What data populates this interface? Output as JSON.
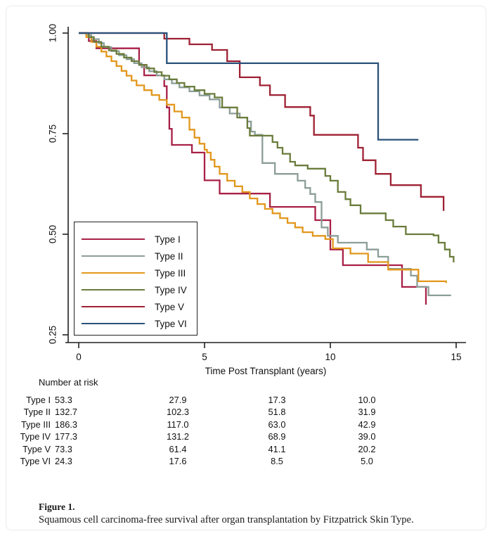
{
  "figure": {
    "caption_label": "Figure 1.",
    "caption_text": "Squamous cell carcinoma-free survival after organ transplantation by Fitzpatrick Skin Type."
  },
  "chart_data": {
    "type": "line",
    "subtype": "kaplan-meier-step-survival",
    "title": "",
    "xlabel": "Time Post Transplant (years)",
    "ylabel": "",
    "xlim": [
      0,
      15
    ],
    "ylim": [
      0.22,
      1.0
    ],
    "x_ticks": [
      0,
      5,
      10,
      15
    ],
    "x_tick_labels": [
      "0",
      "5",
      "10",
      "15"
    ],
    "y_ticks": [
      1.0,
      0.75,
      0.5,
      0.25
    ],
    "y_tick_labels": [
      "1.00",
      "0.75",
      "0.50",
      "0.25"
    ],
    "grid": false,
    "legend_position": "lower-left-inside-box",
    "axis_color": "#231f20",
    "series": [
      {
        "name": "Type I",
        "color": "#a82046",
        "points": [
          [
            0,
            1.0
          ],
          [
            0.4,
            0.98
          ],
          [
            0.7,
            0.962
          ],
          [
            2.4,
            0.921
          ],
          [
            2.6,
            0.895
          ],
          [
            3.4,
            0.868
          ],
          [
            3.5,
            0.815
          ],
          [
            3.6,
            0.762
          ],
          [
            3.7,
            0.722
          ],
          [
            4.5,
            0.703
          ],
          [
            5.0,
            0.634
          ],
          [
            5.6,
            0.601
          ],
          [
            7.6,
            0.568
          ],
          [
            9.4,
            0.535
          ],
          [
            10.0,
            0.462
          ],
          [
            10.5,
            0.423
          ],
          [
            12.85,
            0.369
          ],
          [
            13.8,
            0.325
          ]
        ]
      },
      {
        "name": "Type II",
        "color": "#8c9e98",
        "points": [
          [
            0,
            1.0
          ],
          [
            0.3,
            0.995
          ],
          [
            0.5,
            0.985
          ],
          [
            0.8,
            0.975
          ],
          [
            1.0,
            0.965
          ],
          [
            1.3,
            0.955
          ],
          [
            1.6,
            0.945
          ],
          [
            1.9,
            0.935
          ],
          [
            2.2,
            0.925
          ],
          [
            2.5,
            0.915
          ],
          [
            2.8,
            0.905
          ],
          [
            3.1,
            0.895
          ],
          [
            3.4,
            0.885
          ],
          [
            3.7,
            0.875
          ],
          [
            4.0,
            0.865
          ],
          [
            4.4,
            0.855
          ],
          [
            4.8,
            0.845
          ],
          [
            5.2,
            0.835
          ],
          [
            5.6,
            0.815
          ],
          [
            6.0,
            0.8
          ],
          [
            6.4,
            0.79
          ],
          [
            6.7,
            0.78
          ],
          [
            6.85,
            0.755
          ],
          [
            7.0,
            0.747
          ],
          [
            7.3,
            0.677
          ],
          [
            7.8,
            0.65
          ],
          [
            8.7,
            0.633
          ],
          [
            9.0,
            0.615
          ],
          [
            9.2,
            0.6
          ],
          [
            9.4,
            0.58
          ],
          [
            9.65,
            0.517
          ],
          [
            9.9,
            0.496
          ],
          [
            10.3,
            0.479
          ],
          [
            11.45,
            0.462
          ],
          [
            11.9,
            0.444
          ],
          [
            12.3,
            0.414
          ],
          [
            13.2,
            0.397
          ],
          [
            13.45,
            0.369
          ],
          [
            13.9,
            0.348
          ],
          [
            14.8,
            0.348
          ]
        ]
      },
      {
        "name": "Type III",
        "color": "#e2971b",
        "points": [
          [
            0,
            1.0
          ],
          [
            0.3,
            0.99
          ],
          [
            0.5,
            0.978
          ],
          [
            0.7,
            0.966
          ],
          [
            0.9,
            0.954
          ],
          [
            1.1,
            0.942
          ],
          [
            1.3,
            0.93
          ],
          [
            1.5,
            0.918
          ],
          [
            1.7,
            0.906
          ],
          [
            1.9,
            0.894
          ],
          [
            2.1,
            0.882
          ],
          [
            2.3,
            0.87
          ],
          [
            2.6,
            0.858
          ],
          [
            2.9,
            0.846
          ],
          [
            3.2,
            0.834
          ],
          [
            3.5,
            0.822
          ],
          [
            3.8,
            0.805
          ],
          [
            4.1,
            0.79
          ],
          [
            4.4,
            0.76
          ],
          [
            4.6,
            0.74
          ],
          [
            4.8,
            0.725
          ],
          [
            5.0,
            0.71
          ],
          [
            5.1,
            0.703
          ],
          [
            5.25,
            0.685
          ],
          [
            5.4,
            0.668
          ],
          [
            5.6,
            0.65
          ],
          [
            5.9,
            0.633
          ],
          [
            6.2,
            0.619
          ],
          [
            6.5,
            0.605
          ],
          [
            6.8,
            0.589
          ],
          [
            7.1,
            0.575
          ],
          [
            7.4,
            0.563
          ],
          [
            7.7,
            0.552
          ],
          [
            8.0,
            0.54
          ],
          [
            8.3,
            0.528
          ],
          [
            8.6,
            0.517
          ],
          [
            8.9,
            0.505
          ],
          [
            9.3,
            0.496
          ],
          [
            9.8,
            0.488
          ],
          [
            10.1,
            0.465
          ],
          [
            10.8,
            0.452
          ],
          [
            11.5,
            0.431
          ],
          [
            12.3,
            0.412
          ],
          [
            13.5,
            0.383
          ],
          [
            14.6,
            0.379
          ]
        ]
      },
      {
        "name": "Type IV",
        "color": "#6a7c3b",
        "points": [
          [
            0,
            1.0
          ],
          [
            0.4,
            0.99
          ],
          [
            0.6,
            0.978
          ],
          [
            0.9,
            0.966
          ],
          [
            1.2,
            0.957
          ],
          [
            1.5,
            0.948
          ],
          [
            1.8,
            0.939
          ],
          [
            2.1,
            0.93
          ],
          [
            2.4,
            0.921
          ],
          [
            2.7,
            0.912
          ],
          [
            3.0,
            0.903
          ],
          [
            3.3,
            0.894
          ],
          [
            3.6,
            0.885
          ],
          [
            3.9,
            0.876
          ],
          [
            4.2,
            0.867
          ],
          [
            4.6,
            0.858
          ],
          [
            5.0,
            0.849
          ],
          [
            5.4,
            0.84
          ],
          [
            5.7,
            0.815
          ],
          [
            6.3,
            0.79
          ],
          [
            6.7,
            0.764
          ],
          [
            6.8,
            0.745
          ],
          [
            7.7,
            0.729
          ],
          [
            7.9,
            0.715
          ],
          [
            8.1,
            0.7
          ],
          [
            8.4,
            0.68
          ],
          [
            8.6,
            0.671
          ],
          [
            9.1,
            0.663
          ],
          [
            9.8,
            0.645
          ],
          [
            10.0,
            0.633
          ],
          [
            10.3,
            0.605
          ],
          [
            10.6,
            0.587
          ],
          [
            10.8,
            0.572
          ],
          [
            11.2,
            0.552
          ],
          [
            12.2,
            0.535
          ],
          [
            12.5,
            0.519
          ],
          [
            13.0,
            0.5
          ],
          [
            14.1,
            0.497
          ],
          [
            14.3,
            0.479
          ],
          [
            14.55,
            0.462
          ],
          [
            14.75,
            0.444
          ],
          [
            14.9,
            0.43
          ]
        ]
      },
      {
        "name": "Type V",
        "color": "#9e2133",
        "points": [
          [
            0,
            1.0
          ],
          [
            3.4,
            0.986
          ],
          [
            4.4,
            0.972
          ],
          [
            5.3,
            0.958
          ],
          [
            5.9,
            0.93
          ],
          [
            6.4,
            0.89
          ],
          [
            7.2,
            0.87
          ],
          [
            7.6,
            0.846
          ],
          [
            8.2,
            0.816
          ],
          [
            9.2,
            0.795
          ],
          [
            9.35,
            0.747
          ],
          [
            11.1,
            0.715
          ],
          [
            11.3,
            0.684
          ],
          [
            11.8,
            0.65
          ],
          [
            12.4,
            0.622
          ],
          [
            13.6,
            0.593
          ],
          [
            14.5,
            0.558
          ]
        ]
      },
      {
        "name": "Type VI",
        "color": "#2a527a",
        "points": [
          [
            0,
            1.0
          ],
          [
            3.5,
            0.925
          ],
          [
            11.9,
            0.735
          ],
          [
            13.5,
            0.735
          ]
        ]
      }
    ],
    "risk_table": {
      "header": "Number at risk",
      "times": [
        0,
        5,
        10,
        15
      ],
      "rows": [
        {
          "label": "Type I",
          "values": [
            "53.3",
            "27.9",
            "17.3",
            "10.0"
          ]
        },
        {
          "label": "Type II",
          "values": [
            "132.7",
            "102.3",
            "51.8",
            "31.9"
          ]
        },
        {
          "label": "Type III",
          "values": [
            "186.3",
            "117.0",
            "63.0",
            "42.9"
          ]
        },
        {
          "label": "Type IV",
          "values": [
            "177.3",
            "131.2",
            "68.9",
            "39.0"
          ]
        },
        {
          "label": "Type V",
          "values": [
            "73.3",
            "61.4",
            "41.1",
            "20.2"
          ]
        },
        {
          "label": "Type VI",
          "values": [
            "24.3",
            "17.6",
            "8.5",
            "5.0"
          ]
        }
      ]
    }
  }
}
